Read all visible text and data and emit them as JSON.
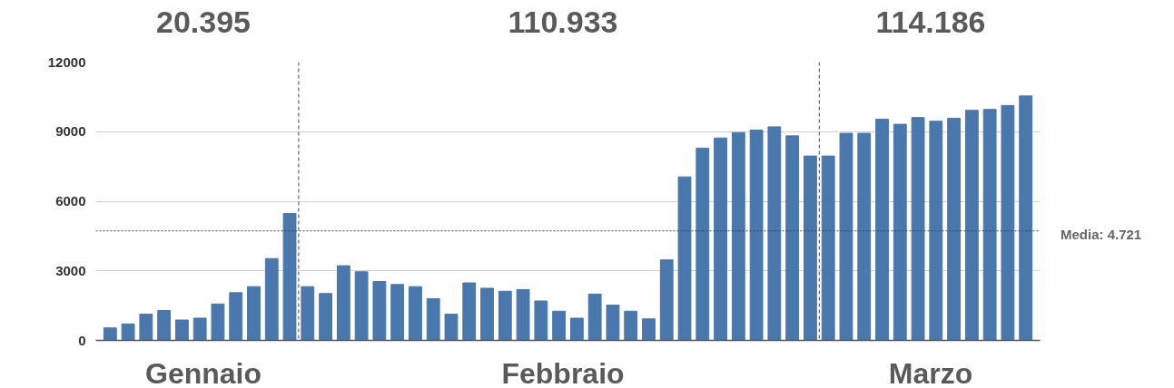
{
  "chart_data": {
    "type": "bar",
    "categories": [
      null,
      null,
      null,
      null,
      null,
      null,
      null,
      null,
      null,
      null,
      null,
      null,
      null,
      null,
      null,
      null,
      null,
      null,
      null,
      null,
      null,
      null,
      null,
      null,
      null,
      null,
      null,
      null,
      null,
      null,
      null,
      null,
      null,
      null,
      null,
      null,
      null,
      null,
      null,
      null,
      null,
      null,
      null,
      null,
      null,
      null,
      null,
      null,
      null,
      null,
      null,
      null
    ],
    "values": [
      540,
      710,
      1130,
      1290,
      880,
      960,
      1570,
      2060,
      2320,
      3530,
      5470,
      2320,
      2020,
      3220,
      2960,
      2540,
      2410,
      2320,
      1800,
      1130,
      2480,
      2250,
      2120,
      2190,
      1700,
      1260,
      960,
      2000,
      1520,
      1260,
      930,
      3470,
      7050,
      8290,
      8730,
      8960,
      9070,
      9210,
      8820,
      7950,
      7950,
      8930,
      8930,
      9540,
      9320,
      9610,
      9450,
      9580,
      9920,
      9960,
      10130,
      10540
    ],
    "color": "#4a78ad",
    "ylim": [
      0,
      12000
    ],
    "yticks": [
      0,
      3000,
      6000,
      9000,
      12000
    ],
    "grid": "y",
    "ref_lines": [
      {
        "axis": "y",
        "value": 4721,
        "label": "Media: 4.721",
        "line_style": "dotted"
      }
    ],
    "annotations": [
      "20.395",
      "110.933",
      "114.186",
      "Gennaio",
      "Febbraio",
      "Marzo"
    ]
  }
}
